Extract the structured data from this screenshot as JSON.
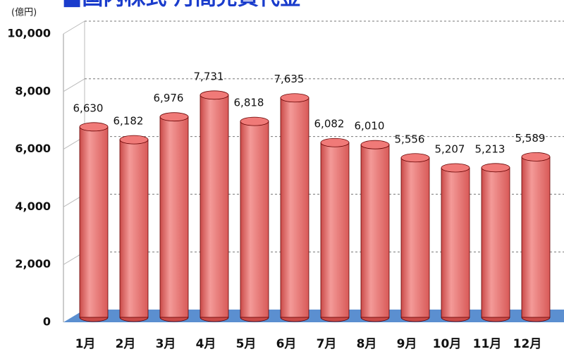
{
  "chart_data": {
    "type": "bar",
    "title": "■国内株式 月間売買代金",
    "unit": "(億円)",
    "categories": [
      "1月",
      "2月",
      "3月",
      "4月",
      "5月",
      "6月",
      "7月",
      "8月",
      "9月",
      "10月",
      "11月",
      "12月"
    ],
    "values": [
      6630,
      6182,
      6976,
      7731,
      6818,
      7635,
      6082,
      6010,
      5556,
      5207,
      5213,
      5589
    ],
    "value_labels": [
      "6,630",
      "6,182",
      "6,976",
      "7,731",
      "6,818",
      "7,635",
      "6,082",
      "6,010",
      "5,556",
      "5,207",
      "5,213",
      "5,589"
    ],
    "color": "#f07a78",
    "ylim": [
      0,
      10000
    ],
    "yticks": [
      0,
      {
        "value": 2000,
        "label": "2,000"
      },
      {
        "value": 4000,
        "label": "4,000"
      },
      {
        "value": 6000,
        "label": "6,000"
      },
      {
        "value": 8000,
        "label": "8,000"
      },
      {
        "value": 10000,
        "label": "10,000"
      }
    ],
    "grid": true
  }
}
